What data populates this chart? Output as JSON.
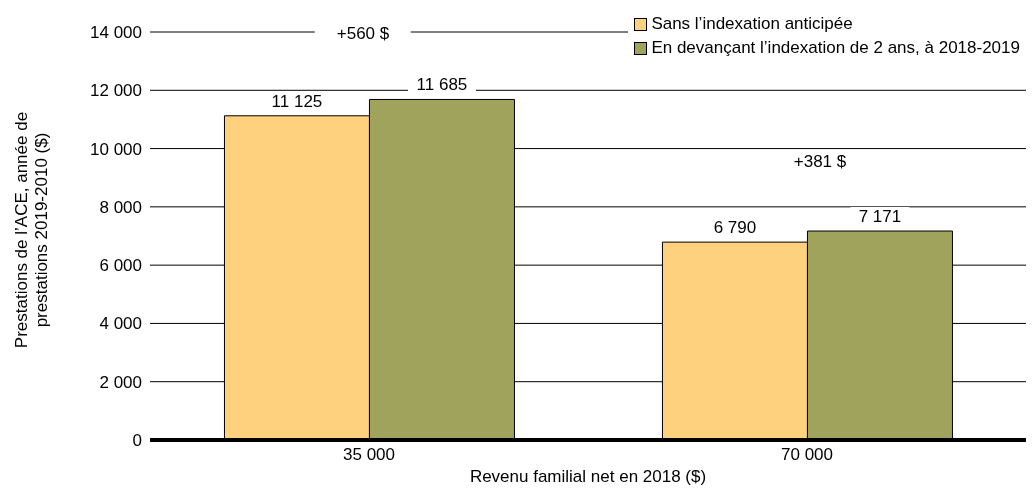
{
  "chart_data": {
    "type": "bar",
    "ylabel": "Prestations de l’ACE, année de prestations 2019-2010 ($)",
    "xlabel": "Revenu familial net en 2018 ($)",
    "categories": [
      "35 000",
      "70 000"
    ],
    "series": [
      {
        "name": "Sans l’indexation anticipée",
        "color": "#fed17e",
        "values": [
          11125,
          6790
        ],
        "value_labels": [
          "11 125",
          "6 790"
        ]
      },
      {
        "name": "En devançant l’indexation de 2 ans, à 2018-2019",
        "color": "#a0a35c",
        "values": [
          11685,
          7171
        ],
        "value_labels": [
          "11 685",
          "7 171"
        ]
      }
    ],
    "ylim": [
      0,
      14000
    ],
    "yticks": [
      {
        "value": 0,
        "label": "0"
      },
      {
        "value": 2000,
        "label": "2 000"
      },
      {
        "value": 4000,
        "label": "4 000"
      },
      {
        "value": 6000,
        "label": "6 000"
      },
      {
        "value": 8000,
        "label": "8 000"
      },
      {
        "value": 10000,
        "label": "10 000"
      },
      {
        "value": 12000,
        "label": "12 000"
      },
      {
        "value": 14000,
        "label": "14 000"
      }
    ],
    "grid": "y",
    "legend": "top right",
    "annotations": [
      "+560 $",
      "+381 $"
    ]
  }
}
